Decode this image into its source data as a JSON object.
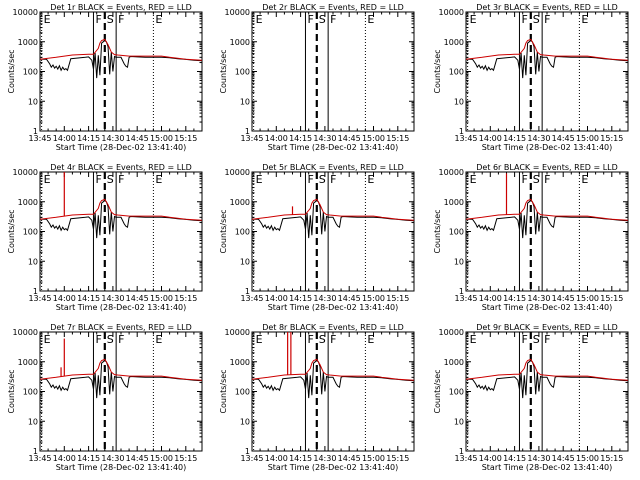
{
  "colors": {
    "events": "#000000",
    "lld": "#cc0000",
    "axis": "#000000",
    "background": "#ffffff"
  },
  "chart_data": {
    "type": "line",
    "layout": "3x3 grid of panels",
    "xlabel": "Start Time (28-Dec-02 13:41:40)",
    "ylabel": "Counts/sec",
    "ylim": [
      1,
      10000
    ],
    "yscale": "log",
    "ytick_labels": [
      "1",
      "10",
      "100",
      "1000",
      "10000"
    ],
    "x_minutes_range": [
      0,
      100
    ],
    "xtick_minutes": [
      0,
      15,
      30,
      45,
      60,
      75,
      90
    ],
    "xtick_labels": [
      "13:45",
      "14:00",
      "14:15",
      "14:30",
      "14:45",
      "15:00",
      "15:15"
    ],
    "panels": [
      {
        "title": "Det 1r  BLACK = Events, RED = LLD",
        "has_data": true,
        "spikes": [],
        "flags": [
          {
            "label": "E",
            "minute": 1
          },
          {
            "label": "F",
            "minute": 33
          },
          {
            "label": "S",
            "minute": 40
          },
          {
            "label": "F",
            "minute": 47
          },
          {
            "label": "E",
            "minute": 70
          }
        ]
      },
      {
        "title": "Det 2r  BLACK = Events, RED = LLD",
        "has_data": false,
        "spikes": [],
        "flags": [
          {
            "label": "E",
            "minute": 1
          },
          {
            "label": "F",
            "minute": 33
          },
          {
            "label": "S",
            "minute": 40
          },
          {
            "label": "F",
            "minute": 47
          },
          {
            "label": "E",
            "minute": 70
          }
        ]
      },
      {
        "title": "Det 3r  BLACK = Events, RED = LLD",
        "has_data": true,
        "spikes": [],
        "flags": [
          {
            "label": "E",
            "minute": 1
          },
          {
            "label": "F",
            "minute": 33
          },
          {
            "label": "S",
            "minute": 40
          },
          {
            "label": "F",
            "minute": 47
          },
          {
            "label": "E",
            "minute": 70
          }
        ]
      },
      {
        "title": "Det 4r  BLACK = Events, RED = LLD",
        "has_data": true,
        "spikes": [
          {
            "minute": 15,
            "value": 10000
          }
        ],
        "flags": [
          {
            "label": "E",
            "minute": 1
          },
          {
            "label": "F",
            "minute": 33
          },
          {
            "label": "S",
            "minute": 40
          },
          {
            "label": "F",
            "minute": 47
          },
          {
            "label": "E",
            "minute": 70
          }
        ]
      },
      {
        "title": "Det 5r  BLACK = Events, RED = LLD",
        "has_data": true,
        "spikes": [
          {
            "minute": 25,
            "value": 700
          }
        ],
        "flags": [
          {
            "label": "E",
            "minute": 1
          },
          {
            "label": "F",
            "minute": 33
          },
          {
            "label": "S",
            "minute": 40
          },
          {
            "label": "F",
            "minute": 47
          },
          {
            "label": "E",
            "minute": 70
          }
        ]
      },
      {
        "title": "Det 6r  BLACK = Events, RED = LLD",
        "has_data": true,
        "spikes": [
          {
            "minute": 25,
            "value": 9000
          }
        ],
        "flags": [
          {
            "label": "E",
            "minute": 1
          },
          {
            "label": "F",
            "minute": 33
          },
          {
            "label": "S",
            "minute": 40
          },
          {
            "label": "F",
            "minute": 47
          },
          {
            "label": "E",
            "minute": 70
          }
        ]
      },
      {
        "title": "Det 7r  BLACK = Events, RED = LLD",
        "has_data": true,
        "spikes": [
          {
            "minute": 13,
            "value": 650
          },
          {
            "minute": 15,
            "value": 6000
          }
        ],
        "flags": [
          {
            "label": "E",
            "minute": 1
          },
          {
            "label": "F",
            "minute": 33
          },
          {
            "label": "S",
            "minute": 40
          },
          {
            "label": "F",
            "minute": 47
          },
          {
            "label": "E",
            "minute": 70
          }
        ]
      },
      {
        "title": "Det 8r  BLACK = Events, RED = LLD",
        "has_data": true,
        "spikes": [
          {
            "minute": 22,
            "value": 10000
          },
          {
            "minute": 24,
            "value": 10000
          }
        ],
        "flags": [
          {
            "label": "E",
            "minute": 1
          },
          {
            "label": "F",
            "minute": 33
          },
          {
            "label": "S",
            "minute": 40
          },
          {
            "label": "F",
            "minute": 47
          },
          {
            "label": "E",
            "minute": 70
          }
        ]
      },
      {
        "title": "Det 9r  BLACK = Events, RED = LLD",
        "has_data": true,
        "spikes": [],
        "flags": [
          {
            "label": "E",
            "minute": 1
          },
          {
            "label": "F",
            "minute": 33
          },
          {
            "label": "S",
            "minute": 40
          },
          {
            "label": "F",
            "minute": 47
          },
          {
            "label": "E",
            "minute": 70
          }
        ]
      }
    ],
    "lld_series": {
      "name": "RED = LLD",
      "x": [
        0,
        10,
        20,
        30,
        33,
        36,
        37,
        38,
        40,
        42,
        44,
        46,
        48,
        55,
        60,
        65,
        70,
        75,
        80,
        85,
        90,
        95,
        100
      ],
      "values": [
        260,
        300,
        360,
        380,
        380,
        600,
        900,
        1100,
        1200,
        800,
        450,
        370,
        360,
        330,
        330,
        330,
        330,
        330,
        300,
        280,
        260,
        250,
        240
      ]
    },
    "events_series": {
      "name": "BLACK = Events",
      "x": [
        0,
        4,
        6,
        7,
        8,
        9,
        10,
        11,
        12,
        13,
        14,
        15,
        16,
        17,
        19,
        22,
        25,
        28,
        30,
        32,
        33,
        34,
        35,
        36,
        37,
        38,
        39,
        40,
        41,
        42,
        43,
        44,
        45,
        46,
        47,
        48,
        50,
        52,
        53,
        54,
        55,
        56,
        60,
        65,
        70,
        75,
        80,
        85,
        90,
        95,
        100
      ],
      "values": [
        260,
        260,
        180,
        140,
        165,
        130,
        150,
        120,
        155,
        110,
        140,
        115,
        125,
        110,
        270,
        280,
        290,
        300,
        310,
        240,
        120,
        420,
        60,
        350,
        75,
        900,
        1000,
        1100,
        1000,
        700,
        80,
        450,
        100,
        320,
        300,
        300,
        300,
        180,
        150,
        140,
        300,
        320,
        310,
        300,
        300,
        300,
        290,
        270,
        255,
        240,
        230
      ]
    }
  }
}
